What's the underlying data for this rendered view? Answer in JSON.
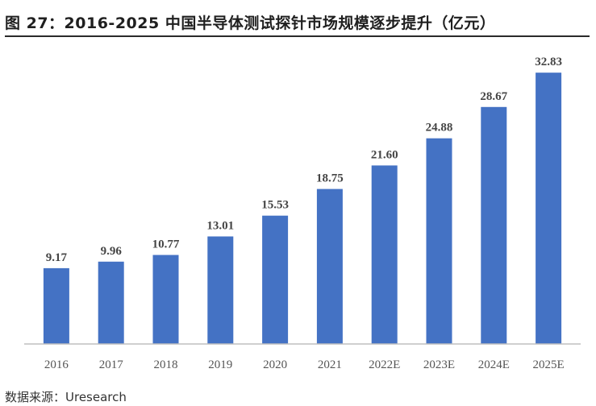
{
  "figure": {
    "title": "图 27：2016-2025 中国半导体测试探针市场规模逐步提升（亿元）",
    "source": "数据来源：Uresearch"
  },
  "colors": {
    "bar": "#4472C4",
    "axis": "#bfbfbf"
  },
  "chart_data": {
    "type": "bar",
    "title": "图 27：2016-2025 中国半导体测试探针市场规模逐步提升（亿元）",
    "xlabel": "",
    "ylabel": "",
    "categories": [
      "2016",
      "2017",
      "2018",
      "2019",
      "2020",
      "2021",
      "2022E",
      "2023E",
      "2024E",
      "2025E"
    ],
    "values": [
      9.17,
      9.96,
      10.77,
      13.01,
      15.53,
      18.75,
      21.6,
      24.88,
      28.67,
      32.83
    ],
    "value_labels": [
      "9.17",
      "9.96",
      "10.77",
      "13.01",
      "15.53",
      "18.75",
      "21.60",
      "24.88",
      "28.67",
      "32.83"
    ],
    "ylim": [
      0,
      35
    ],
    "grid": false,
    "legend": "none"
  }
}
